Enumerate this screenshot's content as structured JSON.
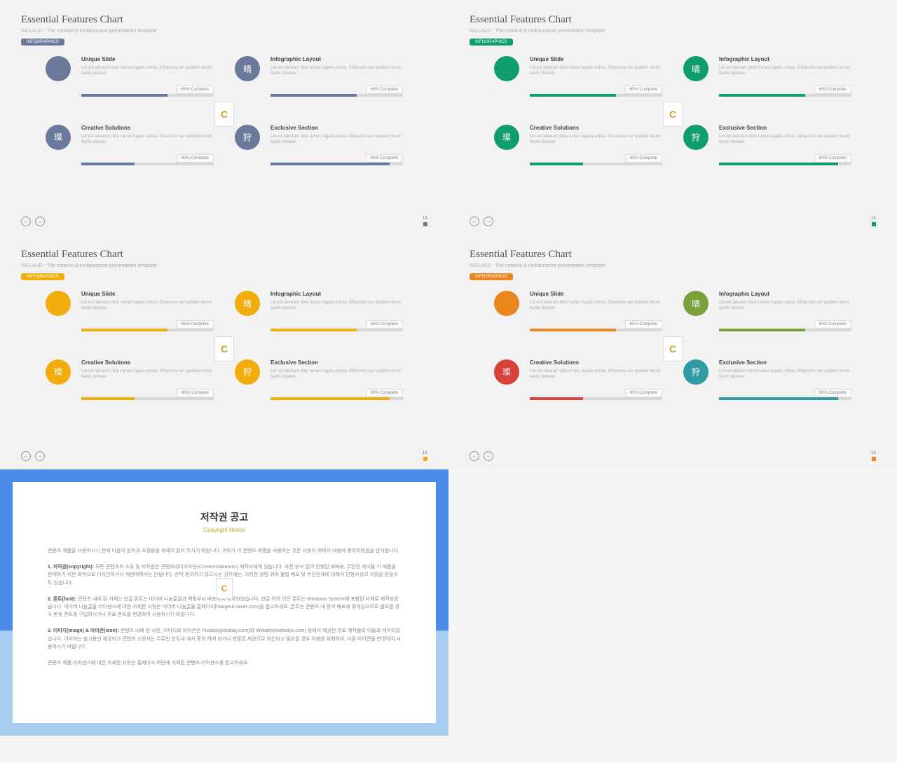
{
  "slides": [
    {
      "accent": "#6b7a9b",
      "badge_bg": "#6b7a9b",
      "colors": [
        "#6b7a9b",
        "#6b7a9b",
        "#6b7a9b",
        "#6b7a9b"
      ]
    },
    {
      "accent": "#0f9d6f",
      "badge_bg": "#0f9d6f",
      "colors": [
        "#0f9d6f",
        "#0f9d6f",
        "#0f9d6f",
        "#0f9d6f"
      ]
    },
    {
      "accent": "#f0ad0b",
      "badge_bg": "#f0ad0b",
      "colors": [
        "#f0ad0b",
        "#f0ad0b",
        "#f0ad0b",
        "#f0ad0b"
      ]
    },
    {
      "accent": "#e9861d",
      "badge_bg": "#e9861d",
      "colors": [
        "#e9861d",
        "#7aa03b",
        "#d8403a",
        "#2f9ba5"
      ]
    }
  ],
  "common": {
    "title": "Essential Features Chart",
    "subtitle": "INCLAUD - The creative & multipurpose presentation template",
    "badge": "INFOGRAPHICS",
    "logo": "C",
    "page": "14",
    "features": [
      {
        "title": "Unique Slide",
        "glyph": "",
        "pct": 65,
        "label": "65% Complete"
      },
      {
        "title": "Infographic Layout",
        "glyph": "晴",
        "pct": 65,
        "label": "65% Complete"
      },
      {
        "title": "Creative Solutions",
        "glyph": "璨",
        "pct": 40,
        "label": "40% Complete"
      },
      {
        "title": "Exclusive Section",
        "glyph": "狩",
        "pct": 90,
        "label": "90% Complete"
      }
    ],
    "desc": "Lid est laborum dolo rumes fugats untras. Etharums ser quidem rerum facilis dolores"
  },
  "notice": {
    "title_ko": "저작권 공고",
    "title_en": "Copyright Notice",
    "p1": "콘텐츠 제품을 사용하시기 전에 다음의 원칙과 조항들을 세세히 읽어 주시기 바랍니다. 귀하가 이 콘텐츠 제품을 사용하는 것은 사용자 계약서 내용에 동의하였음을 암시합니다.",
    "p2_label": "1. 저작권(copyright):",
    "p2": " 모든 콘텐츠의 소유 및 저작권은 콘텐츠테이크아웃(Contentstakeouts) 제작사에게 있습니다. 사전 승낙 없이 진행된 재배포, 무단된 게시물 기 제품을 판매하기 위한 목적으로 디자인하거나 재판매해서는 안됩니다. 만약 동의하지 않으시는 경우에는, 이러한 광범 위하 불법 배포 및 무단전재에 대해서 민형사상의 처벌을 받을수도 있습니다.",
    "p3_label": "2. 폰트(font):",
    "p3": " 콘텐츠 내에 된 서체는 한글 폰트는 네이버 나눔글꼴과 백핑부서 배포하여 제작되었습니다. 한글 외의 모든 폰트는 Windows System에 포함된 서체로 제작되었습니다. 네이버 나눔글꼴 라이센스에 대한 자세한 사항은 네이버 나눔글꼴 홈페이지(hangeul.naver.com)을 참고하세요. 폰트는 콘텐츠 내 정식 배포에 맞게있으므로 필요할 경우 변동 폰트를 구입하시거나 무료 폰트를 변경하여 사용하시기 바랍니다.",
    "p4_label": "3. 이미지(image) & 아이콘(icon):",
    "p4": " 콘텐츠 내에 된 사진, 이미지와 아이콘은 Pixabay(pixabay.com)와 Webalys(webalys.com) 등에서 제공된 무료 제작물로 이들과 제작되었습니다. 이미지는 참고용만 제공되고 콘텐츠 소장자는 무료인 한도내 에서 동의 하게 되거나 변동된 제공으로 최인되고 필요할 경우 아래를 위해하여, 다른 아이콘을 변경하여 사용하시기 바랍니다.",
    "p5": "콘텐츠 제품 라이센스에 대한 자세한 사항은 홈페이지 하단에 게재된 콘텐츠 라이센스를 참고하세요."
  }
}
